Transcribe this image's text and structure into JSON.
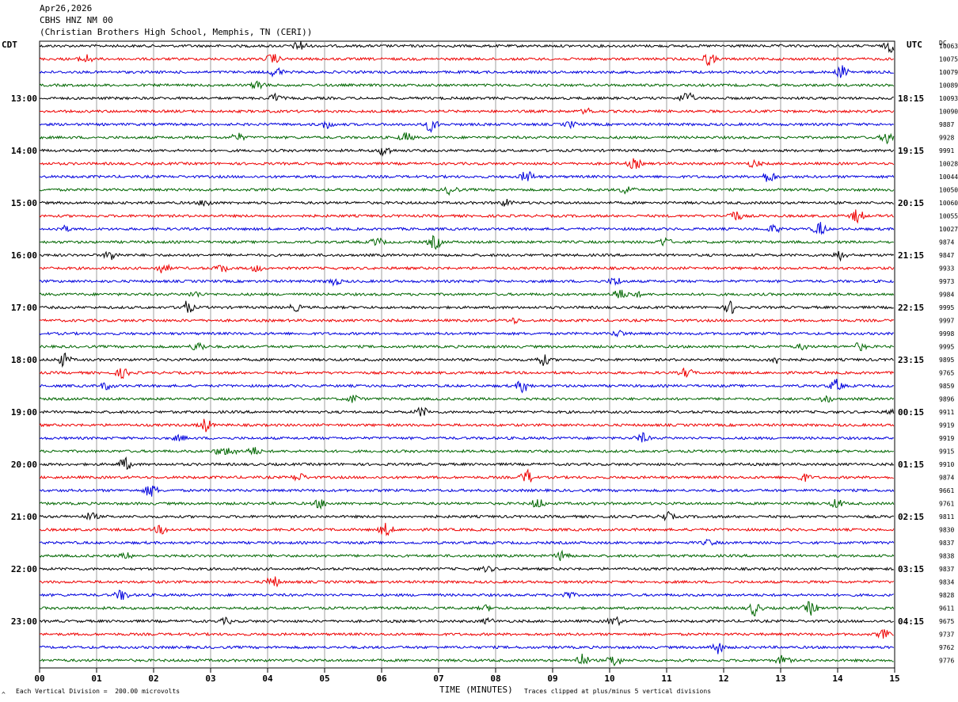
{
  "header": {
    "date": "Apr26,2026",
    "station": "CBHS HNZ NM 00",
    "site": "(Christian Brothers High School, Memphis, TN (CERI))"
  },
  "timezones": {
    "left": "CDT",
    "right": "UTC",
    "dc_label": "DC"
  },
  "footer": {
    "scale_note": "Each Vertical Division =  200.00 microvolts",
    "xlabel": "TIME (MINUTES)",
    "clip_note": "Traces clipped at plus/minus 5 vertical divisions",
    "corner_mark": "^"
  },
  "colors": {
    "cycle": [
      "#000000",
      "#ee0000",
      "#0000dd",
      "#006600"
    ],
    "grid": "#888888"
  },
  "chart_data": {
    "type": "line",
    "title": "CBHS HNZ NM 00",
    "xlabel": "TIME (MINUTES)",
    "xlim": [
      0,
      15
    ],
    "x_ticks": [
      "00",
      "01",
      "02",
      "03",
      "04",
      "05",
      "06",
      "07",
      "08",
      "09",
      "10",
      "11",
      "12",
      "13",
      "14",
      "15"
    ],
    "left_time_labels": [
      "13:00",
      "14:00",
      "15:00",
      "16:00",
      "17:00",
      "18:00",
      "19:00",
      "20:00",
      "21:00",
      "22:00",
      "23:00"
    ],
    "right_time_labels": [
      "18:15",
      "19:15",
      "20:15",
      "21:15",
      "22:15",
      "23:15",
      "00:15",
      "01:15",
      "02:15",
      "03:15",
      "04:15"
    ],
    "first_hour_label_row": 4,
    "rows_per_hour": 4,
    "dc_values": [
      "10063",
      "10075",
      "10079",
      "10089",
      "10093",
      "10090",
      "9887",
      "9928",
      "9991",
      "10028",
      "10044",
      "10050",
      "10060",
      "10055",
      "10027",
      "9874",
      "9847",
      "9933",
      "9973",
      "9984",
      "9995",
      "9997",
      "9998",
      "9995",
      "9895",
      "9765",
      "9859",
      "9896",
      "9911",
      "9919",
      "9919",
      "9915",
      "9910",
      "9874",
      "9661",
      "9761",
      "9811",
      "9830",
      "9837",
      "9838",
      "9837",
      "9834",
      "9828",
      "9611",
      "9675",
      "9737",
      "9762",
      "9776"
    ]
  }
}
